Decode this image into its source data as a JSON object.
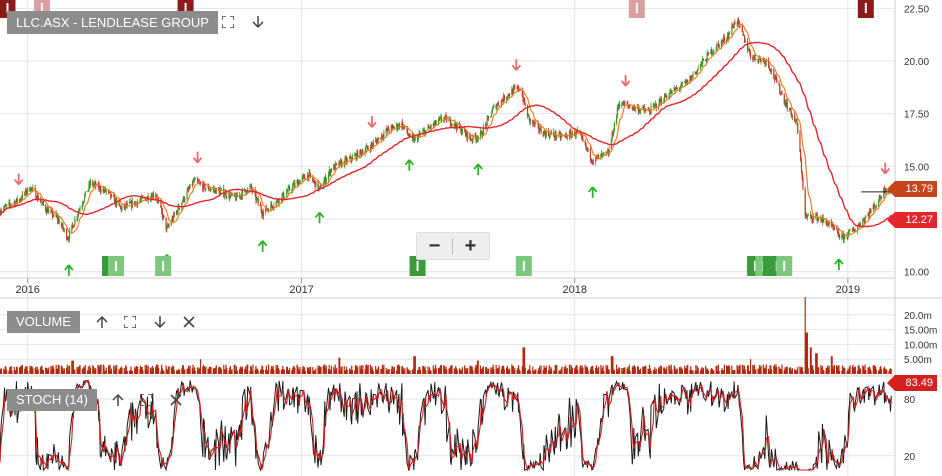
{
  "colors": {
    "candle_up": "#3a9a2a",
    "candle_down": "#c0392b",
    "ma_fast": "#ef7e22",
    "ma_slow": "#e3262b",
    "arrow_up": "#2ab52a",
    "arrow_down": "#e86a6a",
    "volume": "#b02a10",
    "stoch_k": "#1a1a1a",
    "stoch_d": "#d42020",
    "grid": "#e4e4e4",
    "panel_label_bg": "#8c8c8c",
    "marker_green": "#3c9a3c",
    "marker_green_light": "#7cc87c",
    "marker_red": "#8b1a1a",
    "marker_red_light": "#d8a0a0"
  },
  "price_panel": {
    "title": "LLC.ASX - LENDLEASE GROUP",
    "fullscreen_icon": "expand-icon",
    "move_down_icon": "arrow-down-icon",
    "last_price_label": "13.79",
    "ma_price_label": "12.27"
  },
  "volume_panel": {
    "title": "VOLUME",
    "icons": [
      "arrow-up-icon",
      "expand-icon",
      "arrow-down-icon",
      "close-icon"
    ]
  },
  "stoch_panel": {
    "title": "STOCH (14)",
    "value_label": "83.49",
    "icons": [
      "arrow-up-icon",
      "expand-icon",
      "close-icon"
    ]
  },
  "zoom": {
    "minus_label": "−",
    "plus_label": "+"
  },
  "chart_data": [
    {
      "type": "candlestick",
      "title": "LLC.ASX - LENDLEASE GROUP",
      "x_axis": {
        "ticks": [
          "2016",
          "2017",
          "2018",
          "2019"
        ],
        "range": [
          "2015-11-25",
          "2019-03-05"
        ]
      },
      "y_axis": {
        "ticks": [
          "10.00",
          "12.50",
          "15.00",
          "17.50",
          "20.00",
          "22.50"
        ],
        "range": [
          9.7,
          22.8
        ],
        "side": "right"
      },
      "grid": true,
      "price_anchors": [
        [
          "2015-11-25",
          12.9
        ],
        [
          "2015-12-20",
          13.4
        ],
        [
          "2016-01-05",
          14.0
        ],
        [
          "2016-01-25",
          13.0
        ],
        [
          "2016-02-10",
          12.5
        ],
        [
          "2016-02-24",
          11.6
        ],
        [
          "2016-03-10",
          13.0
        ],
        [
          "2016-03-25",
          14.2
        ],
        [
          "2016-04-15",
          13.8
        ],
        [
          "2016-05-05",
          13.0
        ],
        [
          "2016-05-25",
          13.3
        ],
        [
          "2016-06-20",
          13.7
        ],
        [
          "2016-07-05",
          12.0
        ],
        [
          "2016-07-20",
          13.0
        ],
        [
          "2016-08-10",
          14.3
        ],
        [
          "2016-08-25",
          14.0
        ],
        [
          "2016-09-15",
          13.8
        ],
        [
          "2016-10-05",
          13.5
        ],
        [
          "2016-10-25",
          14.0
        ],
        [
          "2016-11-10",
          12.8
        ],
        [
          "2016-12-01",
          13.4
        ],
        [
          "2016-12-25",
          14.2
        ],
        [
          "2017-01-10",
          14.6
        ],
        [
          "2017-01-25",
          13.9
        ],
        [
          "2017-02-10",
          14.9
        ],
        [
          "2017-03-10",
          15.4
        ],
        [
          "2017-04-05",
          16.0
        ],
        [
          "2017-04-25",
          16.7
        ],
        [
          "2017-05-15",
          17.0
        ],
        [
          "2017-05-29",
          16.2
        ],
        [
          "2017-06-20",
          16.8
        ],
        [
          "2017-07-10",
          17.3
        ],
        [
          "2017-07-25",
          17.0
        ],
        [
          "2017-08-15",
          16.3
        ],
        [
          "2017-08-29",
          16.5
        ],
        [
          "2017-09-15",
          17.8
        ],
        [
          "2017-10-10",
          18.6
        ],
        [
          "2017-10-20",
          18.7
        ],
        [
          "2017-11-01",
          17.2
        ],
        [
          "2017-11-20",
          16.6
        ],
        [
          "2017-12-15",
          16.4
        ],
        [
          "2018-01-05",
          16.6
        ],
        [
          "2018-01-25",
          15.3
        ],
        [
          "2018-02-15",
          15.6
        ],
        [
          "2018-03-01",
          18.0
        ],
        [
          "2018-03-20",
          17.8
        ],
        [
          "2018-04-10",
          17.6
        ],
        [
          "2018-05-05",
          18.4
        ],
        [
          "2018-06-01",
          19.0
        ],
        [
          "2018-07-01",
          20.4
        ],
        [
          "2018-07-25",
          21.2
        ],
        [
          "2018-08-05",
          22.0
        ],
        [
          "2018-08-25",
          20.2
        ],
        [
          "2018-09-15",
          20.0
        ],
        [
          "2018-10-10",
          18.0
        ],
        [
          "2018-10-25",
          17.0
        ],
        [
          "2018-11-01",
          14.5
        ],
        [
          "2018-11-05",
          12.6
        ],
        [
          "2018-11-20",
          12.6
        ],
        [
          "2018-12-05",
          12.3
        ],
        [
          "2018-12-24",
          11.6
        ],
        [
          "2019-01-10",
          12.0
        ],
        [
          "2019-01-25",
          12.6
        ],
        [
          "2019-02-10",
          13.3
        ],
        [
          "2019-02-20",
          14.0
        ],
        [
          "2019-02-28",
          13.79
        ]
      ],
      "series": [
        {
          "name": "price",
          "kind": "candles"
        },
        {
          "kind": "moving_average_fast",
          "period": 10
        },
        {
          "kind": "moving_average_slow",
          "period": 50
        }
      ],
      "signals_up": [
        "2016-02-25",
        "2016-07-05",
        "2016-11-10",
        "2017-01-25",
        "2017-05-25",
        "2017-08-25",
        "2018-01-25",
        "2018-12-20"
      ],
      "signals_down": [
        "2015-12-20",
        "2016-08-15",
        "2017-04-05",
        "2017-10-15",
        "2018-03-10",
        "2019-02-20"
      ],
      "markers_bottom": [
        {
          "date": "2016-04-20",
          "tone": "dark"
        },
        {
          "date": "2016-04-28",
          "tone": "light"
        },
        {
          "date": "2016-06-30",
          "tone": "light"
        },
        {
          "date": "2017-06-05",
          "tone": "dark"
        },
        {
          "date": "2017-10-25",
          "tone": "light"
        },
        {
          "date": "2018-08-30",
          "tone": "dark"
        },
        {
          "date": "2018-09-10",
          "tone": "light"
        },
        {
          "date": "2018-09-20",
          "tone": "dark"
        },
        {
          "date": "2018-09-28",
          "tone": "dark"
        },
        {
          "date": "2018-10-08",
          "tone": "light"
        }
      ],
      "markers_top": [
        {
          "date": "2015-12-05",
          "tone": "dark"
        },
        {
          "date": "2016-01-20",
          "tone": "light"
        },
        {
          "date": "2016-07-30",
          "tone": "dark"
        },
        {
          "date": "2018-03-25",
          "tone": "light"
        },
        {
          "date": "2019-01-25",
          "tone": "dark"
        }
      ],
      "last_price": 13.79,
      "ma_value": 12.27
    },
    {
      "type": "bar",
      "title": "VOLUME",
      "y_axis": {
        "ticks": [
          "5.00m",
          "10.00m",
          "15.00m",
          "20.0m"
        ],
        "range": [
          0,
          25
        ]
      },
      "baseline_millions": 2.5,
      "spikes": [
        [
          "2016-03-01",
          4.5
        ],
        [
          "2016-08-20",
          5.0
        ],
        [
          "2017-02-20",
          5.5
        ],
        [
          "2017-06-01",
          6.0
        ],
        [
          "2017-08-25",
          4.5
        ],
        [
          "2017-10-25",
          9.0
        ],
        [
          "2018-02-20",
          6.0
        ],
        [
          "2018-08-25",
          5.0
        ],
        [
          "2018-11-05",
          26.0
        ],
        [
          "2018-11-07",
          14.0
        ],
        [
          "2018-11-12",
          9.0
        ],
        [
          "2018-11-20",
          7.0
        ],
        [
          "2018-12-10",
          6.0
        ]
      ]
    },
    {
      "type": "line",
      "title": "STOCH (14)",
      "y_axis": {
        "ticks": [
          "20",
          "80"
        ],
        "range": [
          5,
          100
        ]
      },
      "series": [
        {
          "kind": "stoch_k",
          "color_key": "stoch_k"
        },
        {
          "kind": "stoch_d",
          "color_key": "stoch_d"
        }
      ],
      "last_value": 83.49
    }
  ]
}
